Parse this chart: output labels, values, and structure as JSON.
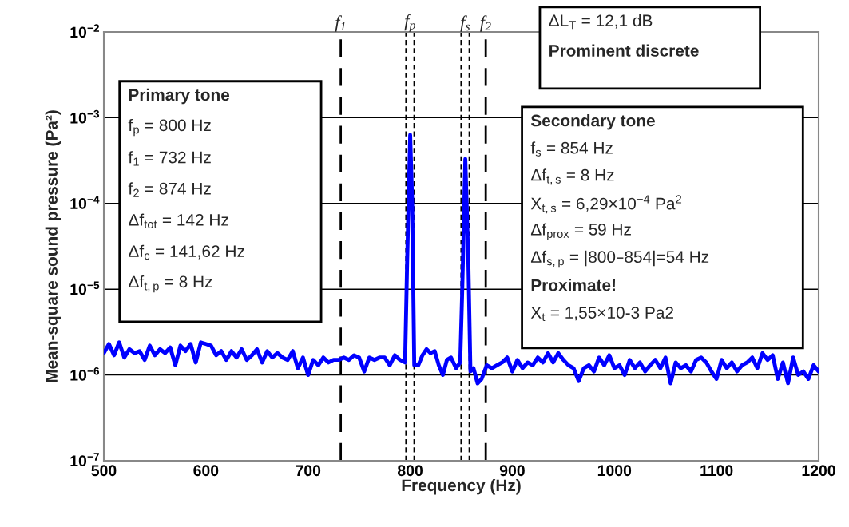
{
  "chart_data": {
    "type": "line",
    "xlabel": "Frequency (Hz)",
    "ylabel": "Mean-square sound pressure (Pa²)",
    "x": [
      500,
      505,
      510,
      515,
      520,
      525,
      530,
      535,
      540,
      545,
      550,
      555,
      560,
      565,
      570,
      575,
      580,
      585,
      590,
      595,
      600,
      605,
      610,
      615,
      620,
      625,
      630,
      635,
      640,
      645,
      650,
      655,
      660,
      665,
      670,
      675,
      680,
      685,
      690,
      695,
      700,
      705,
      710,
      715,
      720,
      725,
      730,
      735,
      740,
      745,
      750,
      755,
      760,
      765,
      770,
      775,
      780,
      785,
      790,
      795,
      797,
      800,
      802,
      804,
      808,
      812,
      816,
      820,
      824,
      828,
      832,
      836,
      840,
      845,
      849,
      851,
      854,
      857,
      859,
      862,
      866,
      870,
      875,
      880,
      885,
      890,
      895,
      900,
      905,
      910,
      915,
      920,
      925,
      930,
      935,
      940,
      945,
      950,
      955,
      960,
      965,
      970,
      975,
      980,
      985,
      990,
      995,
      1000,
      1005,
      1010,
      1015,
      1020,
      1025,
      1030,
      1035,
      1040,
      1045,
      1050,
      1055,
      1060,
      1065,
      1070,
      1075,
      1080,
      1085,
      1090,
      1095,
      1100,
      1105,
      1110,
      1115,
      1120,
      1125,
      1130,
      1135,
      1140,
      1145,
      1150,
      1155,
      1160,
      1165,
      1170,
      1175,
      1180,
      1185,
      1190,
      1195,
      1200
    ],
    "series": [
      {
        "color": "#0000ff",
        "values": [
          1.8e-06,
          2.3e-06,
          1.7e-06,
          2.4e-06,
          1.6e-06,
          2e-06,
          1.8e-06,
          1.9e-06,
          1.5e-06,
          2.2e-06,
          1.7e-06,
          2e-06,
          1.8e-06,
          2.1e-06,
          1.3e-06,
          2.2e-06,
          1.9e-06,
          2.3e-06,
          1.4e-06,
          2.4e-06,
          2.3e-06,
          2.2e-06,
          1.7e-06,
          1.9e-06,
          1.5e-06,
          1.9e-06,
          1.6e-06,
          2e-06,
          1.5e-06,
          1.7e-06,
          2e-06,
          1.4e-06,
          1.9e-06,
          1.6e-06,
          1.8e-06,
          1.6e-06,
          1.5e-06,
          1.9e-06,
          1.2e-06,
          1.6e-06,
          1e-06,
          1.5e-06,
          1.3e-06,
          1.6e-06,
          1.4e-06,
          1.5e-06,
          1.5e-06,
          1.6e-06,
          1.5e-06,
          1.7e-06,
          1.6e-06,
          1.1e-06,
          1.6e-06,
          1.5e-06,
          1.6e-06,
          1.6e-06,
          1.3e-06,
          1.7e-06,
          1.5e-06,
          1.4e-06,
          2e-05,
          0.00063,
          0.0001,
          1.3e-06,
          1.3e-06,
          1.7e-06,
          2e-06,
          1.8e-06,
          1.9e-06,
          1.3e-06,
          1e-06,
          1.5e-06,
          1.6e-06,
          1.2e-06,
          1.4e-06,
          1e-05,
          0.00033,
          2e-05,
          1.1e-06,
          1.2e-06,
          8e-07,
          9e-07,
          1.3e-06,
          1.2e-06,
          1.3e-06,
          1.4e-06,
          1.6e-06,
          1.1e-06,
          1.5e-06,
          1.2e-06,
          1.4e-06,
          1.3e-06,
          1.6e-06,
          1.4e-06,
          1.8e-06,
          1.4e-06,
          1.8e-06,
          1.5e-06,
          1.3e-06,
          1.2e-06,
          8.5e-07,
          1.2e-06,
          1.3e-06,
          1.1e-06,
          1.6e-06,
          1.3e-06,
          1.7e-06,
          1.2e-06,
          1.3e-06,
          1e-06,
          1.5e-06,
          1.2e-06,
          1.4e-06,
          1.1e-06,
          1.3e-06,
          1.5e-06,
          1.2e-06,
          1.6e-06,
          8e-07,
          1.4e-06,
          1.2e-06,
          1.3e-06,
          1.1e-06,
          1.5e-06,
          1.6e-06,
          1.4e-06,
          1.1e-06,
          9e-07,
          1.5e-06,
          1.2e-06,
          1.4e-06,
          1.1e-06,
          1.3e-06,
          1.4e-06,
          1.6e-06,
          1.2e-06,
          1.8e-06,
          1.5e-06,
          1.7e-06,
          9e-07,
          1.4e-06,
          8e-07,
          1.6e-06,
          1e-06,
          1.1e-06,
          9e-07,
          1.3e-06,
          1.1e-06
        ]
      }
    ],
    "xlim": [
      500,
      1200
    ],
    "xticks": [
      500,
      600,
      700,
      800,
      900,
      1000,
      1100,
      1200
    ],
    "ylim": [
      1e-07,
      0.01
    ],
    "log": "y",
    "yticks": [
      {
        "value": 1e-07,
        "label": "10$^{−7}$"
      },
      {
        "value": 1e-06,
        "label": "10$^{−6}$"
      },
      {
        "value": 1e-05,
        "label": "10$^{−5}$"
      },
      {
        "value": 0.0001,
        "label": "10$^{−4}$"
      },
      {
        "value": 0.001,
        "label": "10$^{−3}$"
      },
      {
        "value": 0.01,
        "label": "10$^{−2}$"
      }
    ],
    "grid": "y",
    "marker": "none",
    "line_style": "solid",
    "ref_lines": [
      {
        "axis": "x",
        "value": 732,
        "label": "f$_{1}$",
        "line_style": "dashed"
      },
      {
        "axis": "x",
        "value": 796,
        "label": null,
        "line_style": "dotted"
      },
      {
        "axis": "x",
        "value": 804,
        "label": null,
        "line_style": "dotted"
      },
      {
        "axis": "x",
        "value": 850,
        "label": null,
        "line_style": "dotted"
      },
      {
        "axis": "x",
        "value": 858,
        "label": null,
        "line_style": "dotted"
      },
      {
        "axis": "x",
        "value": 874,
        "label": "f$_{2}$",
        "line_style": "dashed"
      }
    ],
    "annotations": [
      "f$_{p}$",
      "f$_{s}$",
      "Primary tone",
      "f$_{p}$ = 800 Hz",
      "f$_{1}$ = 732 Hz",
      "f$_{2}$ = 874 Hz",
      "Δf$_{tot}$ = 142 Hz",
      "Δf$_{c}$ = 141,62 Hz",
      "Δf$_{t,p}$ = 8 Hz",
      "ΔL$_{T}$ = 12,1 dB",
      "Prominent discrete",
      "Secondary tone",
      "f$_{s}$ = 854 Hz",
      "Δf$_{t,s}$ = 8 Hz",
      "X$_{t,s}$ = 6,29×10$^{−4}$ Pa$^{2}$",
      "Δf$_{prox}$ = 59 Hz",
      "Δf$_{s,p}$ = |800–854|=54 Hz",
      "Proximate!",
      "X$_{t}$ = 1,55×10-3 Pa2"
    ]
  }
}
